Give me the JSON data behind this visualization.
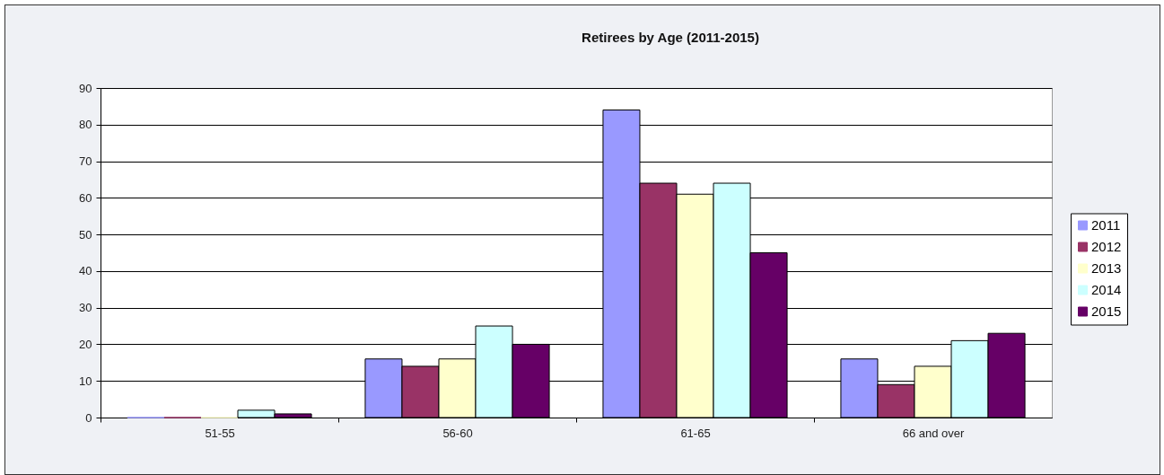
{
  "chart_data": {
    "type": "bar",
    "title": "Retirees by Age (2011-2015)",
    "categories": [
      "51-55",
      "56-60",
      "61-65",
      "66 and over"
    ],
    "series": [
      {
        "name": "2011",
        "color": "#9999ff",
        "values": [
          0,
          16,
          84,
          16
        ]
      },
      {
        "name": "2012",
        "color": "#993366",
        "values": [
          0,
          14,
          64,
          9
        ]
      },
      {
        "name": "2013",
        "color": "#ffffcc",
        "values": [
          0,
          16,
          61,
          14
        ]
      },
      {
        "name": "2014",
        "color": "#ccffff",
        "values": [
          2,
          25,
          64,
          21
        ]
      },
      {
        "name": "2015",
        "color": "#660066",
        "values": [
          1,
          20,
          45,
          23
        ]
      }
    ],
    "ylim": [
      0,
      90
    ],
    "yticks": [
      0,
      10,
      20,
      30,
      40,
      50,
      60,
      70,
      80,
      90
    ],
    "grid": "y",
    "legend": "right"
  }
}
